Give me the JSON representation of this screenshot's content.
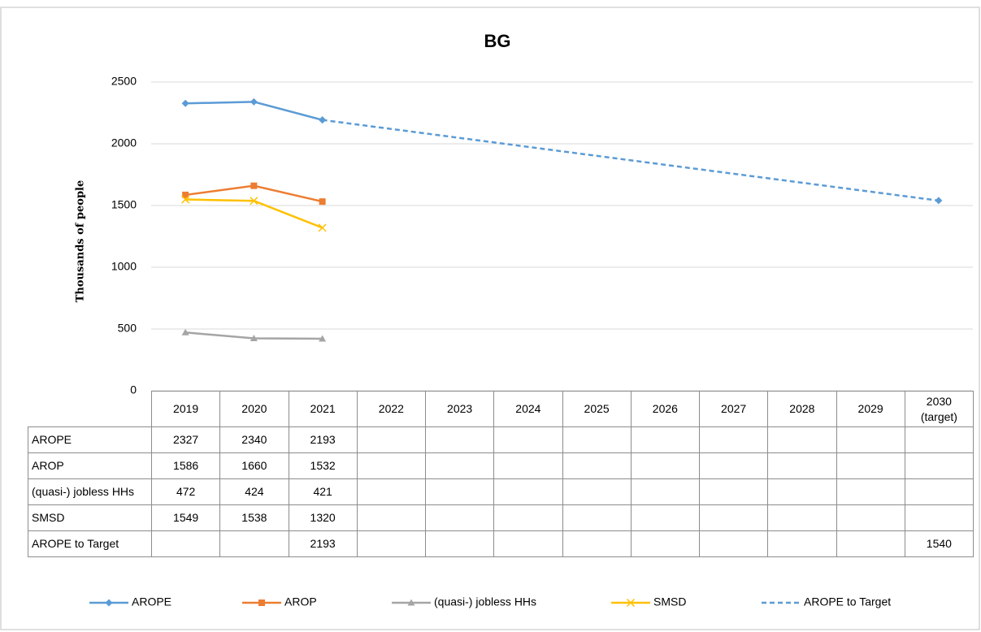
{
  "chart_data": {
    "type": "line",
    "title": "BG",
    "y_label": "Thousands of people",
    "categories": [
      "2019",
      "2020",
      "2021",
      "2022",
      "2023",
      "2024",
      "2025",
      "2026",
      "2027",
      "2028",
      "2029",
      "2030 (target)"
    ],
    "series": [
      {
        "name": "AROPE",
        "color": "#5b9bd5",
        "marker": "diamond",
        "values": [
          2327,
          2340,
          2193,
          null,
          null,
          null,
          null,
          null,
          null,
          null,
          null,
          null
        ]
      },
      {
        "name": "AROP",
        "color": "#ed7d31",
        "marker": "square",
        "values": [
          1586,
          1660,
          1532,
          null,
          null,
          null,
          null,
          null,
          null,
          null,
          null,
          null
        ]
      },
      {
        "name": "(quasi-) jobless HHs",
        "color": "#a5a5a5",
        "marker": "triangle",
        "values": [
          472,
          424,
          421,
          null,
          null,
          null,
          null,
          null,
          null,
          null,
          null,
          null
        ]
      },
      {
        "name": "SMSD",
        "color": "#ffc000",
        "marker": "x",
        "values": [
          1549,
          1538,
          1320,
          null,
          null,
          null,
          null,
          null,
          null,
          null,
          null,
          null
        ]
      },
      {
        "name": "AROPE to Target",
        "color": "#5b9bd5",
        "marker": "diamond",
        "dashed": true,
        "connect_gaps": true,
        "values": [
          null,
          null,
          2193,
          null,
          null,
          null,
          null,
          null,
          null,
          null,
          null,
          1540
        ]
      }
    ],
    "ylim": [
      0,
      2500
    ],
    "yticks": [
      0,
      500,
      1000,
      1500,
      2000,
      2500
    ],
    "grid": true,
    "data_table": true,
    "legend": "bottom"
  }
}
